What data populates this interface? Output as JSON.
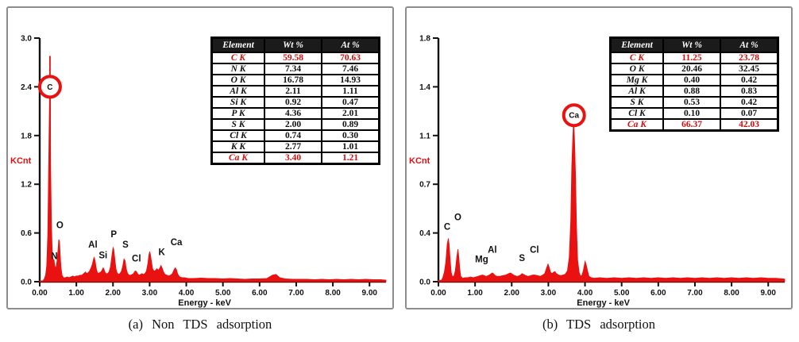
{
  "colors": {
    "spectrum_red": "#ea1111",
    "highlight_red": "#cf1010",
    "axis_black": "#111111",
    "table_header_bg": "#1b1b1b",
    "table_header_text": "#ffffff",
    "panel_border": "#8d8d8d"
  },
  "chart_data": [
    {
      "id": "a",
      "type": "area",
      "caption": "(a) Non TDS adsorption",
      "xlabel": "Energy - keV",
      "ylabel": "KCnt",
      "xlim": [
        0,
        9.45
      ],
      "ylim": [
        0,
        3.0
      ],
      "x_ticks": [
        "0.00",
        "1.00",
        "2.00",
        "3.00",
        "4.00",
        "5.00",
        "6.00",
        "7.00",
        "8.00",
        "9.00"
      ],
      "y_ticks": [
        {
          "label": "3.0",
          "value": 3.0
        },
        {
          "label": "2.4",
          "value": 2.4
        },
        {
          "label": "1.8",
          "value": 1.8
        },
        {
          "label": "1.2",
          "value": 1.2
        },
        {
          "label": "0.6",
          "value": 0.6
        },
        {
          "label": "0.0",
          "value": 0.0
        }
      ],
      "peak_labels": [
        {
          "text": "N",
          "kev": 0.4,
          "kcnt": 0.24
        },
        {
          "text": "O",
          "kev": 0.55,
          "kcnt": 0.62
        },
        {
          "text": "Al",
          "kev": 1.45,
          "kcnt": 0.38
        },
        {
          "text": "Si",
          "kev": 1.73,
          "kcnt": 0.25
        },
        {
          "text": "P",
          "kev": 2.02,
          "kcnt": 0.51
        },
        {
          "text": "S",
          "kev": 2.34,
          "kcnt": 0.38
        },
        {
          "text": "Cl",
          "kev": 2.64,
          "kcnt": 0.21
        },
        {
          "text": "K",
          "kev": 3.33,
          "kcnt": 0.29
        },
        {
          "text": "Ca",
          "kev": 3.73,
          "kcnt": 0.41
        }
      ],
      "circled_peak": {
        "text": "C",
        "kev": 0.28,
        "value": 2.4,
        "r": 13
      },
      "spike": {
        "kev": 0.28,
        "from": 0.8,
        "to": 2.78
      },
      "points": [
        [
          0.0,
          0.01
        ],
        [
          0.08,
          0.01
        ],
        [
          0.12,
          0.03
        ],
        [
          0.16,
          0.08
        ],
        [
          0.19,
          0.2
        ],
        [
          0.22,
          0.6
        ],
        [
          0.25,
          1.6
        ],
        [
          0.27,
          2.4
        ],
        [
          0.28,
          2.65
        ],
        [
          0.29,
          2.35
        ],
        [
          0.3,
          1.4
        ],
        [
          0.32,
          0.7
        ],
        [
          0.34,
          0.4
        ],
        [
          0.36,
          0.28
        ],
        [
          0.39,
          0.27
        ],
        [
          0.41,
          0.2
        ],
        [
          0.44,
          0.16
        ],
        [
          0.47,
          0.25
        ],
        [
          0.5,
          0.4
        ],
        [
          0.52,
          0.52
        ],
        [
          0.54,
          0.5
        ],
        [
          0.56,
          0.33
        ],
        [
          0.58,
          0.18
        ],
        [
          0.61,
          0.08
        ],
        [
          0.65,
          0.05
        ],
        [
          0.7,
          0.05
        ],
        [
          0.75,
          0.06
        ],
        [
          0.8,
          0.05
        ],
        [
          0.85,
          0.06
        ],
        [
          0.9,
          0.07
        ],
        [
          0.95,
          0.06
        ],
        [
          1.0,
          0.07
        ],
        [
          1.05,
          0.07
        ],
        [
          1.1,
          0.08
        ],
        [
          1.15,
          0.08
        ],
        [
          1.2,
          0.1
        ],
        [
          1.25,
          0.12
        ],
        [
          1.28,
          0.1
        ],
        [
          1.32,
          0.11
        ],
        [
          1.36,
          0.13
        ],
        [
          1.4,
          0.17
        ],
        [
          1.44,
          0.22
        ],
        [
          1.47,
          0.28
        ],
        [
          1.49,
          0.3
        ],
        [
          1.51,
          0.26
        ],
        [
          1.54,
          0.17
        ],
        [
          1.57,
          0.12
        ],
        [
          1.6,
          0.1
        ],
        [
          1.63,
          0.11
        ],
        [
          1.67,
          0.12
        ],
        [
          1.7,
          0.14
        ],
        [
          1.73,
          0.17
        ],
        [
          1.75,
          0.16
        ],
        [
          1.78,
          0.12
        ],
        [
          1.81,
          0.1
        ],
        [
          1.85,
          0.1
        ],
        [
          1.89,
          0.12
        ],
        [
          1.93,
          0.18
        ],
        [
          1.97,
          0.32
        ],
        [
          2.0,
          0.42
        ],
        [
          2.02,
          0.4
        ],
        [
          2.05,
          0.28
        ],
        [
          2.08,
          0.16
        ],
        [
          2.11,
          0.11
        ],
        [
          2.15,
          0.09
        ],
        [
          2.19,
          0.1
        ],
        [
          2.23,
          0.13
        ],
        [
          2.27,
          0.2
        ],
        [
          2.3,
          0.28
        ],
        [
          2.33,
          0.26
        ],
        [
          2.36,
          0.16
        ],
        [
          2.4,
          0.1
        ],
        [
          2.44,
          0.08
        ],
        [
          2.48,
          0.08
        ],
        [
          2.52,
          0.09
        ],
        [
          2.56,
          0.1
        ],
        [
          2.6,
          0.13
        ],
        [
          2.63,
          0.13
        ],
        [
          2.67,
          0.1
        ],
        [
          2.71,
          0.08
        ],
        [
          2.75,
          0.09
        ],
        [
          2.79,
          0.1
        ],
        [
          2.83,
          0.09
        ],
        [
          2.87,
          0.1
        ],
        [
          2.91,
          0.13
        ],
        [
          2.95,
          0.22
        ],
        [
          2.98,
          0.33
        ],
        [
          3.0,
          0.37
        ],
        [
          3.02,
          0.34
        ],
        [
          3.05,
          0.25
        ],
        [
          3.08,
          0.16
        ],
        [
          3.12,
          0.13
        ],
        [
          3.16,
          0.14
        ],
        [
          3.2,
          0.16
        ],
        [
          3.24,
          0.14
        ],
        [
          3.28,
          0.17
        ],
        [
          3.31,
          0.2
        ],
        [
          3.34,
          0.17
        ],
        [
          3.38,
          0.12
        ],
        [
          3.42,
          0.09
        ],
        [
          3.47,
          0.08
        ],
        [
          3.52,
          0.07
        ],
        [
          3.57,
          0.08
        ],
        [
          3.62,
          0.1
        ],
        [
          3.67,
          0.15
        ],
        [
          3.7,
          0.17
        ],
        [
          3.73,
          0.15
        ],
        [
          3.77,
          0.09
        ],
        [
          3.82,
          0.06
        ],
        [
          3.88,
          0.05
        ],
        [
          3.95,
          0.05
        ],
        [
          4.05,
          0.04
        ],
        [
          4.2,
          0.04
        ],
        [
          4.4,
          0.045
        ],
        [
          4.6,
          0.04
        ],
        [
          4.8,
          0.04
        ],
        [
          5.0,
          0.035
        ],
        [
          5.2,
          0.04
        ],
        [
          5.4,
          0.035
        ],
        [
          5.6,
          0.03
        ],
        [
          5.8,
          0.035
        ],
        [
          6.0,
          0.035
        ],
        [
          6.2,
          0.04
        ],
        [
          6.35,
          0.08
        ],
        [
          6.45,
          0.09
        ],
        [
          6.55,
          0.05
        ],
        [
          6.7,
          0.035
        ],
        [
          6.9,
          0.03
        ],
        [
          7.1,
          0.03
        ],
        [
          7.3,
          0.03
        ],
        [
          7.5,
          0.025
        ],
        [
          7.7,
          0.03
        ],
        [
          7.9,
          0.025
        ],
        [
          8.1,
          0.03
        ],
        [
          8.3,
          0.025
        ],
        [
          8.5,
          0.03
        ],
        [
          8.7,
          0.025
        ],
        [
          8.9,
          0.03
        ],
        [
          9.1,
          0.025
        ],
        [
          9.3,
          0.025
        ],
        [
          9.45,
          0.02
        ]
      ],
      "table": {
        "headers": [
          "Element",
          "Wt %",
          "At %"
        ],
        "rows": [
          {
            "el": "C K",
            "wt": "59.58",
            "at": "70.63",
            "hl": true
          },
          {
            "el": "N K",
            "wt": "7.34",
            "at": "7.46",
            "hl": false
          },
          {
            "el": "O K",
            "wt": "16.78",
            "at": "14.93",
            "hl": false
          },
          {
            "el": "Al K",
            "wt": "2.11",
            "at": "1.11",
            "hl": false
          },
          {
            "el": "Si K",
            "wt": "0.92",
            "at": "0.47",
            "hl": false
          },
          {
            "el": "P K",
            "wt": "4.36",
            "at": "2.01",
            "hl": false
          },
          {
            "el": "S K",
            "wt": "2.00",
            "at": "0.89",
            "hl": false
          },
          {
            "el": "Cl K",
            "wt": "0.74",
            "at": "0.30",
            "hl": false
          },
          {
            "el": "K K",
            "wt": "2.77",
            "at": "1.01",
            "hl": false
          },
          {
            "el": "Ca K",
            "wt": "3.40",
            "at": "1.21",
            "hl": true
          }
        ]
      }
    },
    {
      "id": "b",
      "type": "area",
      "caption": "(b) TDS adsorption",
      "xlabel": "Energy - keV",
      "ylabel": "KCnt",
      "xlim": [
        0,
        9.45
      ],
      "ylim": [
        0,
        1.8
      ],
      "x_ticks": [
        "0.00",
        "1.00",
        "2.00",
        "3.00",
        "4.00",
        "5.00",
        "6.00",
        "7.00",
        "8.00",
        "9.00"
      ],
      "y_ticks": [
        {
          "label": "1.8",
          "value": 1.8
        },
        {
          "label": "1.4",
          "value": 1.44
        },
        {
          "label": "1.1",
          "value": 1.08
        },
        {
          "label": "0.7",
          "value": 0.72
        },
        {
          "label": "0.4",
          "value": 0.36
        },
        {
          "label": "0.0",
          "value": 0.0
        }
      ],
      "peak_labels": [
        {
          "text": "C",
          "kev": 0.24,
          "kcnt": 0.36
        },
        {
          "text": "O",
          "kev": 0.53,
          "kcnt": 0.43
        },
        {
          "text": "Mg",
          "kev": 1.18,
          "kcnt": 0.12
        },
        {
          "text": "Al",
          "kev": 1.47,
          "kcnt": 0.19
        },
        {
          "text": "S",
          "kev": 2.28,
          "kcnt": 0.13
        },
        {
          "text": "Cl",
          "kev": 2.62,
          "kcnt": 0.19
        }
      ],
      "circled_peak": {
        "text": "Ca",
        "kev": 3.7,
        "value": 1.23,
        "r": 13
      },
      "spike": {
        "kev": 3.69,
        "from": 1.0,
        "to": 1.25
      },
      "points": [
        [
          0.0,
          0.01
        ],
        [
          0.08,
          0.01
        ],
        [
          0.12,
          0.03
        ],
        [
          0.16,
          0.07
        ],
        [
          0.2,
          0.14
        ],
        [
          0.24,
          0.28
        ],
        [
          0.27,
          0.32
        ],
        [
          0.29,
          0.28
        ],
        [
          0.32,
          0.16
        ],
        [
          0.35,
          0.07
        ],
        [
          0.38,
          0.04
        ],
        [
          0.42,
          0.04
        ],
        [
          0.46,
          0.08
        ],
        [
          0.5,
          0.18
        ],
        [
          0.53,
          0.24
        ],
        [
          0.55,
          0.2
        ],
        [
          0.58,
          0.1
        ],
        [
          0.61,
          0.04
        ],
        [
          0.66,
          0.025
        ],
        [
          0.72,
          0.03
        ],
        [
          0.8,
          0.03
        ],
        [
          0.88,
          0.035
        ],
        [
          0.95,
          0.03
        ],
        [
          1.02,
          0.035
        ],
        [
          1.08,
          0.04
        ],
        [
          1.14,
          0.045
        ],
        [
          1.2,
          0.05
        ],
        [
          1.25,
          0.045
        ],
        [
          1.3,
          0.04
        ],
        [
          1.36,
          0.045
        ],
        [
          1.42,
          0.055
        ],
        [
          1.47,
          0.065
        ],
        [
          1.5,
          0.06
        ],
        [
          1.55,
          0.045
        ],
        [
          1.6,
          0.04
        ],
        [
          1.68,
          0.04
        ],
        [
          1.76,
          0.045
        ],
        [
          1.84,
          0.05
        ],
        [
          1.92,
          0.06
        ],
        [
          1.97,
          0.065
        ],
        [
          2.02,
          0.055
        ],
        [
          2.08,
          0.045
        ],
        [
          2.15,
          0.04
        ],
        [
          2.22,
          0.045
        ],
        [
          2.28,
          0.06
        ],
        [
          2.32,
          0.055
        ],
        [
          2.38,
          0.045
        ],
        [
          2.45,
          0.04
        ],
        [
          2.52,
          0.045
        ],
        [
          2.58,
          0.05
        ],
        [
          2.63,
          0.05
        ],
        [
          2.7,
          0.045
        ],
        [
          2.78,
          0.04
        ],
        [
          2.85,
          0.05
        ],
        [
          2.9,
          0.06
        ],
        [
          2.95,
          0.1
        ],
        [
          2.99,
          0.13
        ],
        [
          3.02,
          0.11
        ],
        [
          3.06,
          0.07
        ],
        [
          3.1,
          0.06
        ],
        [
          3.14,
          0.07
        ],
        [
          3.18,
          0.075
        ],
        [
          3.22,
          0.06
        ],
        [
          3.28,
          0.05
        ],
        [
          3.34,
          0.045
        ],
        [
          3.4,
          0.05
        ],
        [
          3.46,
          0.055
        ],
        [
          3.52,
          0.08
        ],
        [
          3.57,
          0.18
        ],
        [
          3.61,
          0.45
        ],
        [
          3.64,
          0.85
        ],
        [
          3.67,
          1.08
        ],
        [
          3.69,
          1.16
        ],
        [
          3.71,
          1.08
        ],
        [
          3.74,
          0.8
        ],
        [
          3.77,
          0.4
        ],
        [
          3.8,
          0.16
        ],
        [
          3.84,
          0.07
        ],
        [
          3.88,
          0.04
        ],
        [
          3.92,
          0.05
        ],
        [
          3.96,
          0.09
        ],
        [
          4.0,
          0.15
        ],
        [
          4.03,
          0.13
        ],
        [
          4.07,
          0.08
        ],
        [
          4.11,
          0.04
        ],
        [
          4.17,
          0.03
        ],
        [
          4.25,
          0.025
        ],
        [
          4.4,
          0.03
        ],
        [
          4.6,
          0.025
        ],
        [
          4.8,
          0.03
        ],
        [
          5.0,
          0.025
        ],
        [
          5.2,
          0.03
        ],
        [
          5.4,
          0.025
        ],
        [
          5.6,
          0.03
        ],
        [
          5.8,
          0.025
        ],
        [
          6.0,
          0.03
        ],
        [
          6.2,
          0.025
        ],
        [
          6.4,
          0.03
        ],
        [
          6.6,
          0.025
        ],
        [
          6.8,
          0.03
        ],
        [
          7.0,
          0.025
        ],
        [
          7.2,
          0.03
        ],
        [
          7.4,
          0.025
        ],
        [
          7.6,
          0.03
        ],
        [
          7.8,
          0.025
        ],
        [
          8.0,
          0.03
        ],
        [
          8.2,
          0.025
        ],
        [
          8.4,
          0.03
        ],
        [
          8.6,
          0.025
        ],
        [
          8.8,
          0.03
        ],
        [
          9.0,
          0.025
        ],
        [
          9.2,
          0.025
        ],
        [
          9.45,
          0.02
        ]
      ],
      "table": {
        "headers": [
          "Element",
          "Wt %",
          "At %"
        ],
        "rows": [
          {
            "el": "C K",
            "wt": "11.25",
            "at": "23.78",
            "hl": true
          },
          {
            "el": "O K",
            "wt": "20.46",
            "at": "32.45",
            "hl": false
          },
          {
            "el": "Mg K",
            "wt": "0.40",
            "at": "0.42",
            "hl": false
          },
          {
            "el": "Al K",
            "wt": "0.88",
            "at": "0.83",
            "hl": false
          },
          {
            "el": "S K",
            "wt": "0.53",
            "at": "0.42",
            "hl": false
          },
          {
            "el": "Cl K",
            "wt": "0.10",
            "at": "0.07",
            "hl": false
          },
          {
            "el": "Ca K",
            "wt": "66.37",
            "at": "42.03",
            "hl": true
          }
        ]
      }
    }
  ]
}
